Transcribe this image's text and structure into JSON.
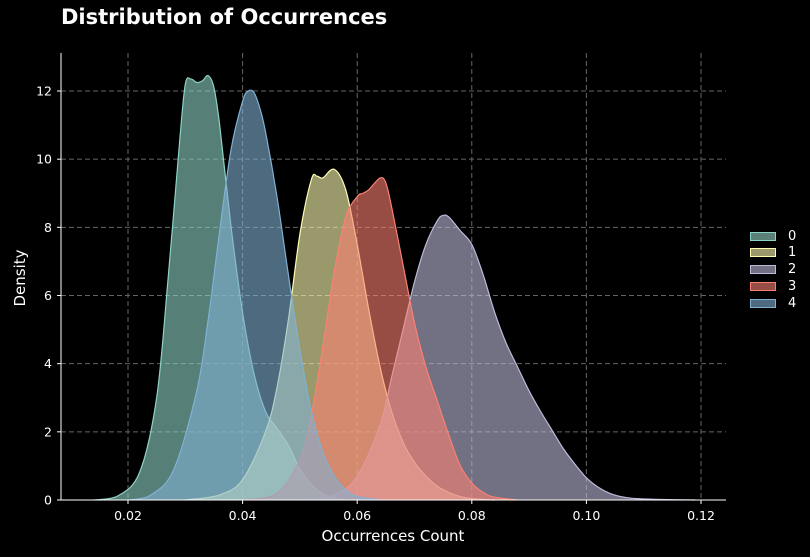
{
  "chart_data": {
    "type": "area",
    "subtype": "kde",
    "title": "Distribution of Occurrences",
    "xlabel": "Occurrences Count",
    "ylabel": "Density",
    "xlim": [
      0.008,
      0.124
    ],
    "ylim": [
      0,
      13.1
    ],
    "xticks": [
      0.02,
      0.04,
      0.06,
      0.08,
      0.1,
      0.12
    ],
    "xtick_labels": [
      "0.02",
      "0.04",
      "0.06",
      "0.08",
      "0.10",
      "0.12"
    ],
    "yticks": [
      0,
      2,
      4,
      6,
      8,
      10,
      12
    ],
    "ytick_labels": [
      "0",
      "2",
      "4",
      "6",
      "8",
      "10",
      "12"
    ],
    "grid": true,
    "legend_position": "right",
    "series": [
      {
        "name": "0",
        "color": "#8dd3c7",
        "x": [
          0.014,
          0.018,
          0.022,
          0.025,
          0.027,
          0.029,
          0.03,
          0.031,
          0.032,
          0.033,
          0.034,
          0.035,
          0.036,
          0.038,
          0.04,
          0.042,
          0.044,
          0.046,
          0.048,
          0.05,
          0.052,
          0.054,
          0.056,
          0.058
        ],
        "y": [
          0,
          0.1,
          0.8,
          3.0,
          6.5,
          10.5,
          12.2,
          12.35,
          12.25,
          12.3,
          12.45,
          12.1,
          11.0,
          8.0,
          5.5,
          3.7,
          2.6,
          2.1,
          1.6,
          0.9,
          0.45,
          0.18,
          0.06,
          0
        ]
      },
      {
        "name": "1",
        "color": "#ffffb3",
        "x": [
          0.03,
          0.036,
          0.04,
          0.044,
          0.046,
          0.048,
          0.05,
          0.052,
          0.053,
          0.054,
          0.056,
          0.058,
          0.06,
          0.062,
          0.064,
          0.066,
          0.068,
          0.07,
          0.072,
          0.074,
          0.076,
          0.078,
          0.08,
          0.084
        ],
        "y": [
          0,
          0.15,
          0.6,
          2.0,
          3.3,
          5.3,
          7.8,
          9.4,
          9.5,
          9.45,
          9.7,
          9.1,
          7.5,
          5.6,
          3.9,
          2.6,
          1.7,
          1.1,
          0.7,
          0.4,
          0.22,
          0.1,
          0.04,
          0
        ]
      },
      {
        "name": "2",
        "color": "#bebada",
        "x": [
          0.05,
          0.056,
          0.06,
          0.064,
          0.066,
          0.068,
          0.07,
          0.072,
          0.074,
          0.075,
          0.076,
          0.078,
          0.08,
          0.082,
          0.084,
          0.086,
          0.088,
          0.09,
          0.092,
          0.094,
          0.096,
          0.098,
          0.1,
          0.102,
          0.104,
          0.106,
          0.108,
          0.112,
          0.119
        ],
        "y": [
          0,
          0.15,
          0.7,
          2.2,
          3.6,
          5.0,
          6.4,
          7.5,
          8.2,
          8.35,
          8.3,
          7.9,
          7.5,
          6.6,
          5.5,
          4.6,
          3.9,
          3.2,
          2.6,
          2.05,
          1.5,
          1.05,
          0.65,
          0.38,
          0.2,
          0.1,
          0.05,
          0.02,
          0
        ]
      },
      {
        "name": "3",
        "color": "#fb8072",
        "x": [
          0.04,
          0.046,
          0.05,
          0.052,
          0.054,
          0.056,
          0.058,
          0.06,
          0.061,
          0.062,
          0.064,
          0.065,
          0.066,
          0.068,
          0.07,
          0.072,
          0.074,
          0.076,
          0.078,
          0.08,
          0.082,
          0.084,
          0.088
        ],
        "y": [
          0,
          0.2,
          1.2,
          2.5,
          4.5,
          6.7,
          8.3,
          8.9,
          9.0,
          9.1,
          9.45,
          9.3,
          8.6,
          6.9,
          5.2,
          3.9,
          2.9,
          1.9,
          1.0,
          0.5,
          0.22,
          0.08,
          0
        ]
      },
      {
        "name": "4",
        "color": "#80b1d3",
        "x": [
          0.02,
          0.024,
          0.028,
          0.032,
          0.034,
          0.036,
          0.038,
          0.04,
          0.041,
          0.042,
          0.043,
          0.044,
          0.046,
          0.048,
          0.05,
          0.052,
          0.054,
          0.056,
          0.058,
          0.06,
          0.064
        ],
        "y": [
          0,
          0.15,
          0.9,
          3.2,
          5.3,
          7.9,
          10.3,
          11.7,
          12.0,
          11.95,
          11.5,
          10.8,
          8.9,
          6.6,
          4.4,
          2.6,
          1.4,
          0.7,
          0.3,
          0.1,
          0
        ]
      }
    ]
  },
  "legend": {
    "items": [
      {
        "label": "0",
        "fill": "#5a8077",
        "edge": "#8dd3c7"
      },
      {
        "label": "1",
        "fill": "#99996c",
        "edge": "#ffffb3"
      },
      {
        "label": "2",
        "fill": "#737084",
        "edge": "#bebada"
      },
      {
        "label": "3",
        "fill": "#974d45",
        "edge": "#fb8072"
      },
      {
        "label": "4",
        "fill": "#4d6a80",
        "edge": "#80b1d3"
      }
    ]
  },
  "style": {
    "background": "#000000",
    "grid_color": "#666666",
    "axis_color": "#ffffff",
    "fill_alpha": 0.6
  }
}
